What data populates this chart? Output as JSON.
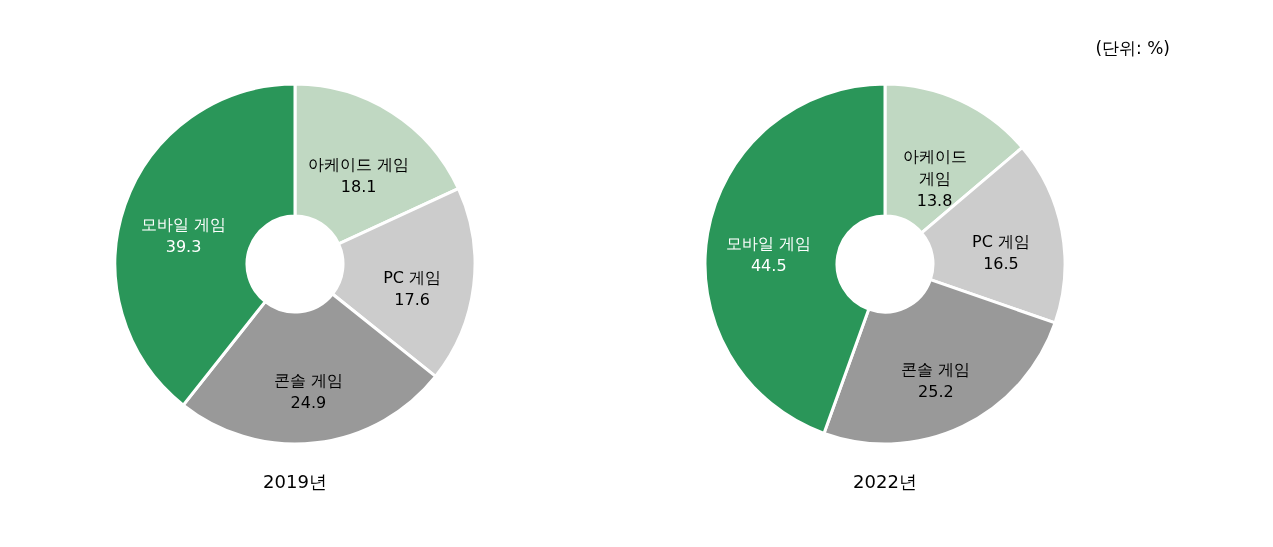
{
  "chart_data": [
    {
      "type": "donut",
      "title": "2019년",
      "categories": [
        "아케이드 게임",
        "PC 게임",
        "콘솔 게임",
        "모바일 게임"
      ],
      "values": [
        18.1,
        17.6,
        24.9,
        39.3
      ],
      "colors": [
        "#c0d8c2",
        "#cccccc",
        "#999999",
        "#2a9659"
      ],
      "data_labels": true,
      "legend": false
    },
    {
      "type": "donut",
      "title": "2022년",
      "categories": [
        "아케이드 게임",
        "PC 게임",
        "콘솔 게임",
        "모바일 게임"
      ],
      "values": [
        13.8,
        16.5,
        25.2,
        44.5
      ],
      "colors": [
        "#c0d8c2",
        "#cccccc",
        "#999999",
        "#2a9659"
      ],
      "data_labels": true,
      "legend": false,
      "annotations": [
        "(단위: %)"
      ]
    }
  ]
}
